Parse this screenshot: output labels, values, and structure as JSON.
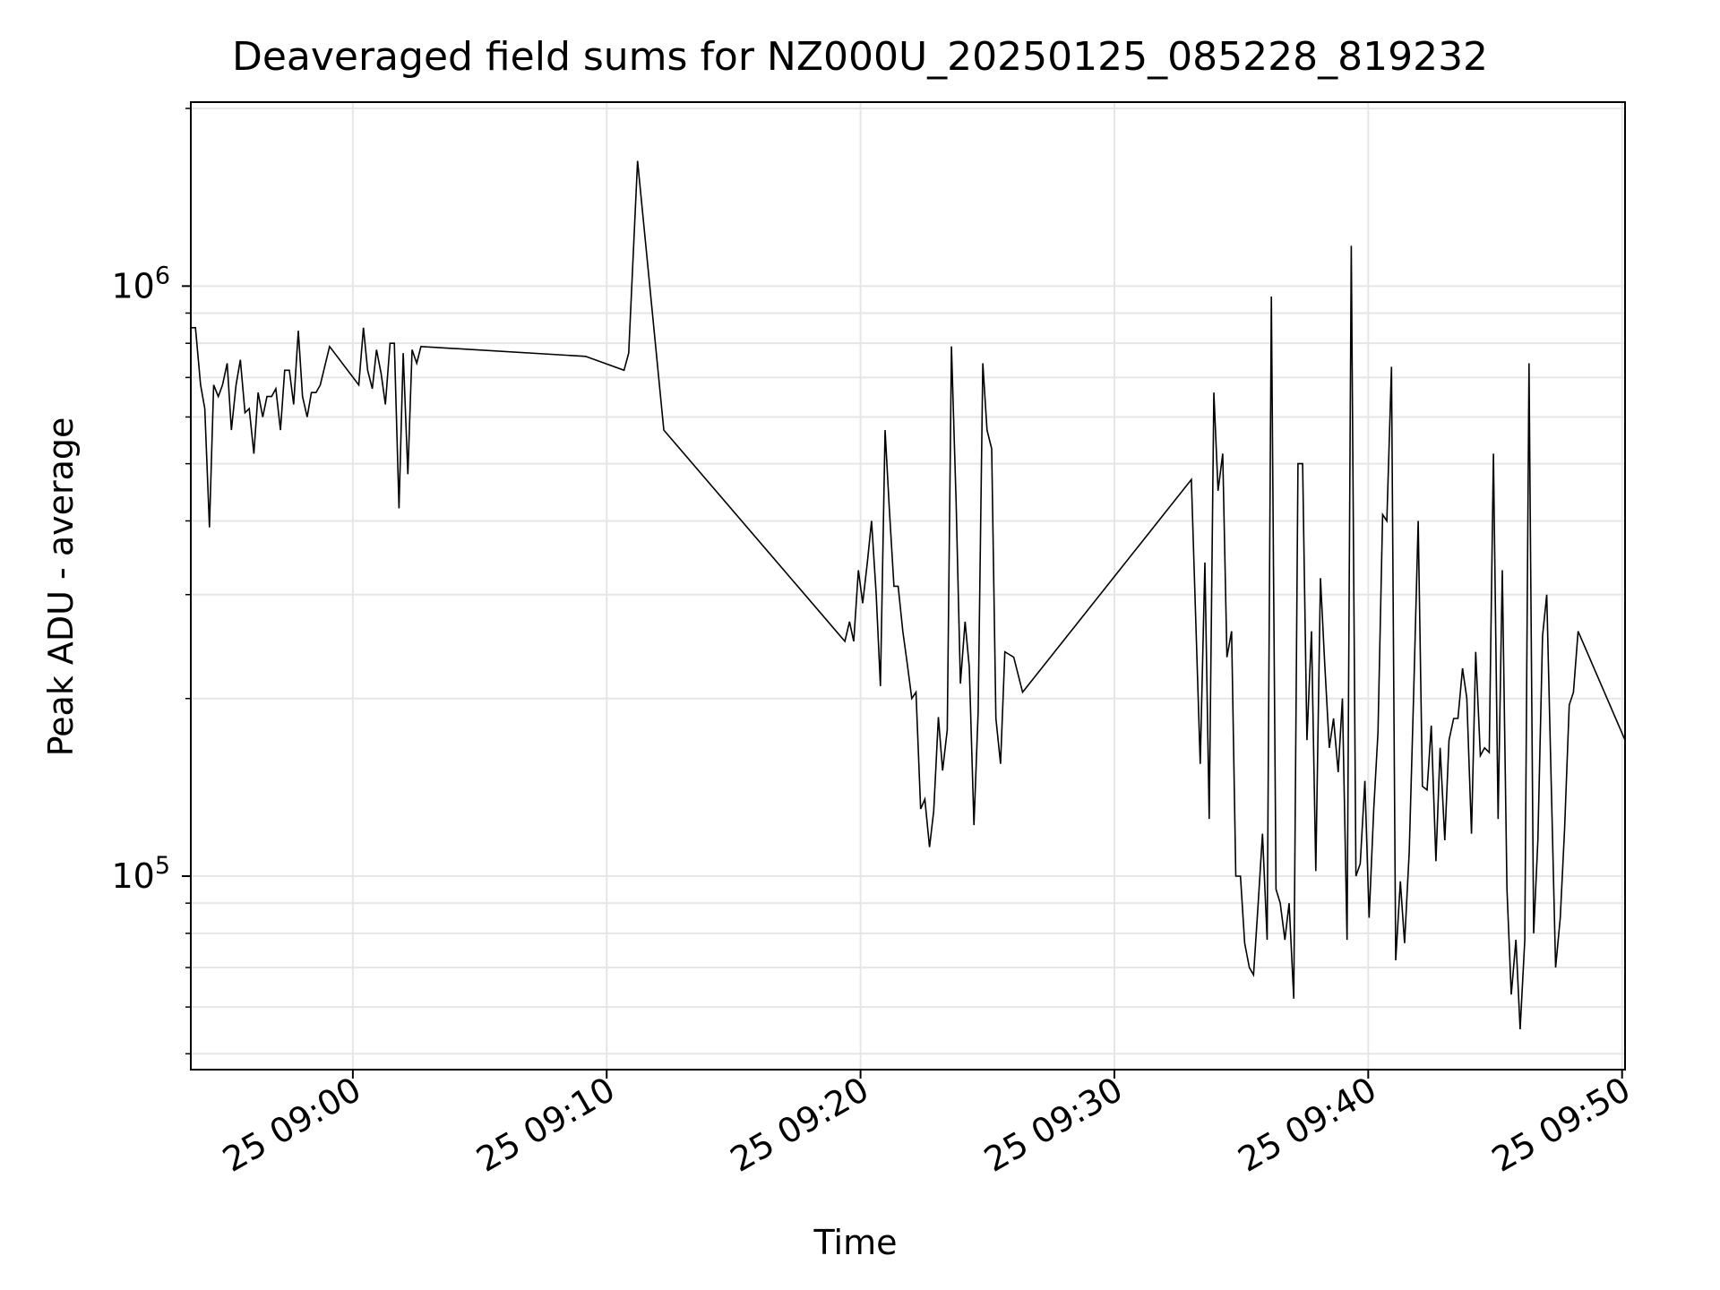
{
  "chart_data": {
    "type": "line",
    "title": "Deaveraged field sums for NZ000U_20250125_085228_819232",
    "xlabel": "Time",
    "ylabel": "Peak ADU - average",
    "yscale": "log",
    "grid": true,
    "line_color": "#000000",
    "xlim": [
      "2025-01-25 08:53:37",
      "2025-01-25 09:50:07"
    ],
    "ylim": [
      47000,
      2050000
    ],
    "x_ticks": [
      "2025-01-25 09:00",
      "2025-01-25 09:10",
      "2025-01-25 09:20",
      "2025-01-25 09:30",
      "2025-01-25 09:40",
      "2025-01-25 09:50"
    ],
    "x_tick_labels": [
      "25 09:00",
      "25 09:10",
      "25 09:20",
      "25 09:30",
      "25 09:40",
      "25 09:50"
    ],
    "y_tick_labels": [
      {
        "base": "10",
        "exp": "5",
        "value": 100000
      },
      {
        "base": "10",
        "exp": "6",
        "value": 1000000
      }
    ],
    "series": [
      {
        "x": [
          "2025-01-25 08:53:37",
          "2025-01-25 08:53:48",
          "2025-01-25 08:54:00",
          "2025-01-25 08:54:10",
          "2025-01-25 08:54:21",
          "2025-01-25 08:54:31",
          "2025-01-25 08:54:42",
          "2025-01-25 08:54:52",
          "2025-01-25 08:55:03",
          "2025-01-25 08:55:13",
          "2025-01-25 08:55:24",
          "2025-01-25 08:55:34",
          "2025-01-25 08:55:45",
          "2025-01-25 08:55:55",
          "2025-01-25 08:56:06",
          "2025-01-25 08:56:16",
          "2025-01-25 08:56:27",
          "2025-01-25 08:56:37",
          "2025-01-25 08:56:48",
          "2025-01-25 08:56:58",
          "2025-01-25 08:57:09",
          "2025-01-25 08:57:19",
          "2025-01-25 08:57:30",
          "2025-01-25 08:57:40",
          "2025-01-25 08:57:51",
          "2025-01-25 08:58:01",
          "2025-01-25 08:58:12",
          "2025-01-25 08:58:22",
          "2025-01-25 08:58:33",
          "2025-01-25 08:58:43",
          "2025-01-25 08:59:05",
          "2025-01-25 09:00:14",
          "2025-01-25 09:00:25",
          "2025-01-25 09:00:35",
          "2025-01-25 09:00:46",
          "2025-01-25 09:00:56",
          "2025-01-25 09:01:07",
          "2025-01-25 09:01:17",
          "2025-01-25 09:01:28",
          "2025-01-25 09:01:38",
          "2025-01-25 09:01:49",
          "2025-01-25 09:01:59",
          "2025-01-25 09:02:10",
          "2025-01-25 09:02:20",
          "2025-01-25 09:02:31",
          "2025-01-25 09:02:41",
          "2025-01-25 09:09:10",
          "2025-01-25 09:10:41",
          "2025-01-25 09:10:52",
          "2025-01-25 09:11:13",
          "2025-01-25 09:12:15",
          "2025-01-25 09:19:23",
          "2025-01-25 09:19:34",
          "2025-01-25 09:19:44",
          "2025-01-25 09:19:55",
          "2025-01-25 09:20:05",
          "2025-01-25 09:20:16",
          "2025-01-25 09:20:26",
          "2025-01-25 09:20:37",
          "2025-01-25 09:20:47",
          "2025-01-25 09:20:58",
          "2025-01-25 09:21:08",
          "2025-01-25 09:21:19",
          "2025-01-25 09:21:29",
          "2025-01-25 09:21:40",
          "2025-01-25 09:21:50",
          "2025-01-25 09:22:01",
          "2025-01-25 09:22:11",
          "2025-01-25 09:22:22",
          "2025-01-25 09:22:32",
          "2025-01-25 09:22:43",
          "2025-01-25 09:22:53",
          "2025-01-25 09:23:04",
          "2025-01-25 09:23:14",
          "2025-01-25 09:23:25",
          "2025-01-25 09:23:35",
          "2025-01-25 09:23:46",
          "2025-01-25 09:23:56",
          "2025-01-25 09:24:07",
          "2025-01-25 09:24:17",
          "2025-01-25 09:24:28",
          "2025-01-25 09:24:38",
          "2025-01-25 09:24:49",
          "2025-01-25 09:24:59",
          "2025-01-25 09:25:10",
          "2025-01-25 09:25:20",
          "2025-01-25 09:25:31",
          "2025-01-25 09:25:41",
          "2025-01-25 09:26:02",
          "2025-01-25 09:26:23",
          "2025-01-25 09:33:02",
          "2025-01-25 09:33:23",
          "2025-01-25 09:33:34",
          "2025-01-25 09:33:44",
          "2025-01-25 09:33:55",
          "2025-01-25 09:34:05",
          "2025-01-25 09:34:16",
          "2025-01-25 09:34:26",
          "2025-01-25 09:34:37",
          "2025-01-25 09:34:47",
          "2025-01-25 09:34:58",
          "2025-01-25 09:35:08",
          "2025-01-25 09:35:19",
          "2025-01-25 09:35:29",
          "2025-01-25 09:35:40",
          "2025-01-25 09:35:50",
          "2025-01-25 09:36:01",
          "2025-01-25 09:36:11",
          "2025-01-25 09:36:22",
          "2025-01-25 09:36:32",
          "2025-01-25 09:36:43",
          "2025-01-25 09:36:53",
          "2025-01-25 09:37:04",
          "2025-01-25 09:37:14",
          "2025-01-25 09:37:25",
          "2025-01-25 09:37:35",
          "2025-01-25 09:37:46",
          "2025-01-25 09:37:56",
          "2025-01-25 09:38:07",
          "2025-01-25 09:38:17",
          "2025-01-25 09:38:28",
          "2025-01-25 09:38:38",
          "2025-01-25 09:38:49",
          "2025-01-25 09:38:59",
          "2025-01-25 09:39:10",
          "2025-01-25 09:39:20",
          "2025-01-25 09:39:31",
          "2025-01-25 09:39:41",
          "2025-01-25 09:39:52",
          "2025-01-25 09:40:02",
          "2025-01-25 09:40:13",
          "2025-01-25 09:40:23",
          "2025-01-25 09:40:34",
          "2025-01-25 09:40:44",
          "2025-01-25 09:40:55",
          "2025-01-25 09:41:05",
          "2025-01-25 09:41:16",
          "2025-01-25 09:41:26",
          "2025-01-25 09:41:37",
          "2025-01-25 09:41:47",
          "2025-01-25 09:41:58",
          "2025-01-25 09:42:08",
          "2025-01-25 09:42:19",
          "2025-01-25 09:42:29",
          "2025-01-25 09:42:40",
          "2025-01-25 09:42:50",
          "2025-01-25 09:43:01",
          "2025-01-25 09:43:11",
          "2025-01-25 09:43:22",
          "2025-01-25 09:43:32",
          "2025-01-25 09:43:43",
          "2025-01-25 09:43:53",
          "2025-01-25 09:44:04",
          "2025-01-25 09:44:14",
          "2025-01-25 09:44:25",
          "2025-01-25 09:44:35",
          "2025-01-25 09:44:46",
          "2025-01-25 09:44:56",
          "2025-01-25 09:45:07",
          "2025-01-25 09:45:17",
          "2025-01-25 09:45:28",
          "2025-01-25 09:45:38",
          "2025-01-25 09:45:49",
          "2025-01-25 09:45:59",
          "2025-01-25 09:46:10",
          "2025-01-25 09:46:20",
          "2025-01-25 09:46:31",
          "2025-01-25 09:46:41",
          "2025-01-25 09:46:52",
          "2025-01-25 09:47:02",
          "2025-01-25 09:47:23",
          "2025-01-25 09:47:34",
          "2025-01-25 09:47:44",
          "2025-01-25 09:47:55",
          "2025-01-25 09:48:05",
          "2025-01-25 09:48:16",
          "2025-01-25 09:50:07"
        ],
        "y": [
          850000,
          850000,
          680000,
          620000,
          390000,
          680000,
          650000,
          680000,
          740000,
          570000,
          680000,
          750000,
          610000,
          620000,
          520000,
          660000,
          600000,
          650000,
          650000,
          670000,
          570000,
          720000,
          720000,
          630000,
          840000,
          650000,
          600000,
          660000,
          660000,
          680000,
          790000,
          680000,
          850000,
          720000,
          670000,
          780000,
          710000,
          630000,
          800000,
          800000,
          420000,
          770000,
          480000,
          780000,
          740000,
          790000,
          760000,
          720000,
          770000,
          1630000,
          570000,
          250000,
          270000,
          250000,
          330000,
          290000,
          340000,
          400000,
          300000,
          210000,
          570000,
          420000,
          310000,
          310000,
          260000,
          230000,
          200000,
          205000,
          130000,
          135000,
          112000,
          129000,
          186000,
          151000,
          177000,
          790000,
          430000,
          212000,
          270000,
          226000,
          122000,
          190000,
          740000,
          570000,
          530000,
          185000,
          155000,
          240000,
          235000,
          205000,
          470000,
          155000,
          340000,
          125000,
          660000,
          450000,
          520000,
          235000,
          260000,
          100000,
          100000,
          77000,
          70000,
          68000,
          90000,
          118000,
          78000,
          960000,
          95000,
          90000,
          78000,
          90000,
          62000,
          500000,
          500000,
          170000,
          260000,
          102000,
          320000,
          230000,
          165000,
          185000,
          150000,
          200000,
          78000,
          1170000,
          100000,
          105000,
          145000,
          85000,
          130000,
          175000,
          410000,
          400000,
          730000,
          72000,
          98000,
          77000,
          110000,
          200000,
          400000,
          142000,
          140000,
          180000,
          106000,
          165000,
          115000,
          170000,
          185000,
          185000,
          225000,
          200000,
          118000,
          240000,
          160000,
          165000,
          162000,
          520000,
          125000,
          330000,
          95000,
          63000,
          78000,
          55000,
          78000,
          740000,
          80000,
          115000,
          255000,
          300000,
          70000,
          85000,
          120000,
          195000,
          205000,
          260000,
          170000
        ]
      }
    ]
  }
}
